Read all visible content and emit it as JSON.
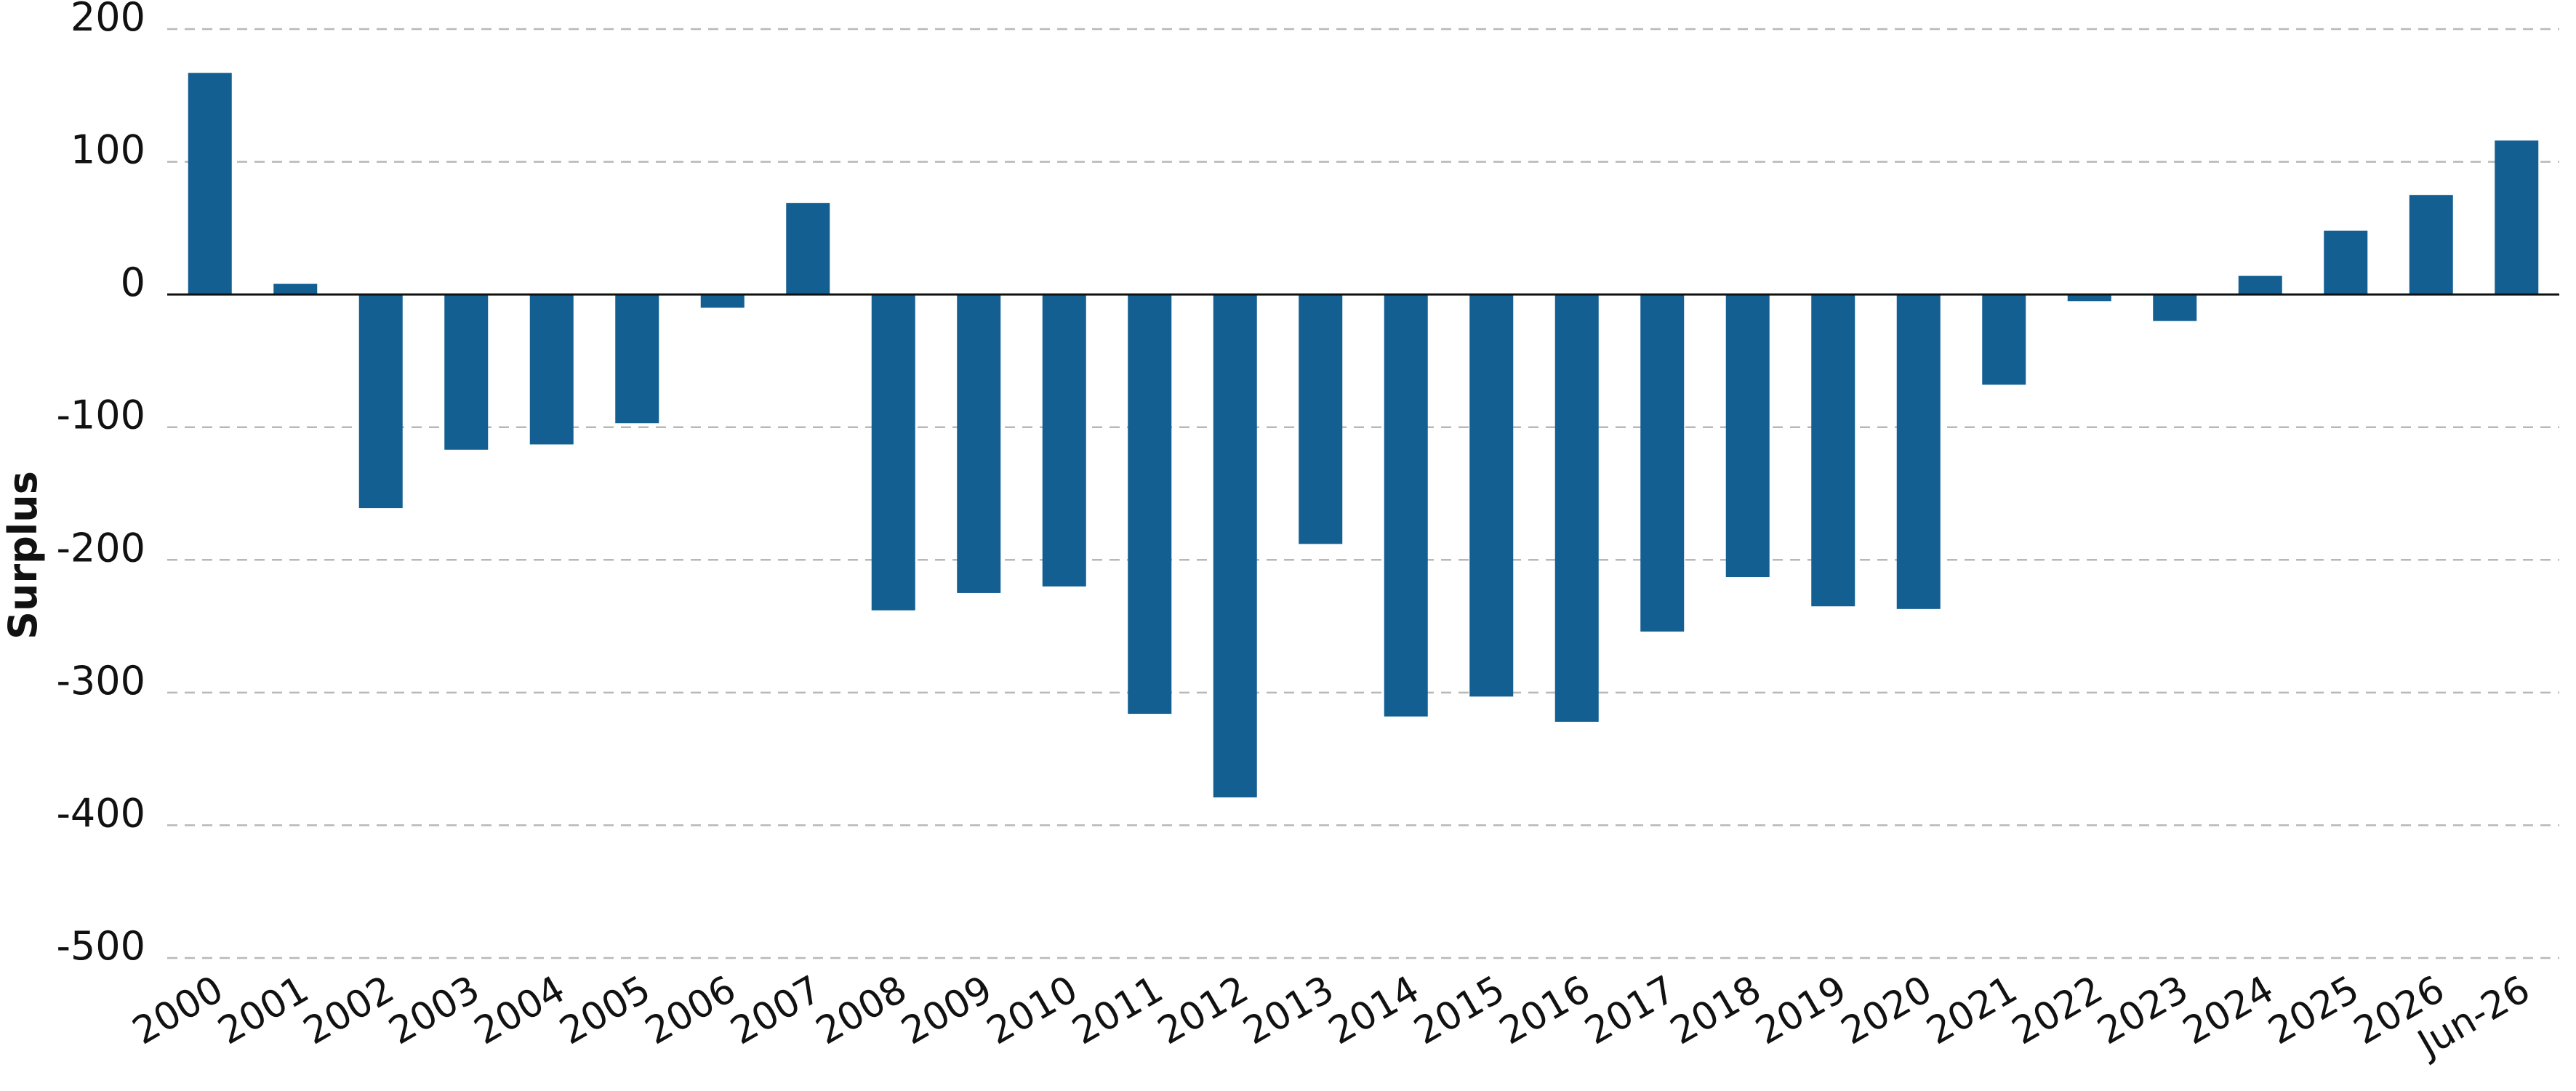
{
  "chart_data": {
    "type": "bar",
    "title": "",
    "xlabel": "",
    "ylabel": "Surplus",
    "ylim": [
      -500,
      200
    ],
    "yticks": [
      200,
      100,
      0,
      -100,
      -200,
      -300,
      -400,
      -500
    ],
    "ytick_labels": [
      "200",
      "100",
      "0",
      "-100",
      "-200",
      "-300",
      "-400",
      "-500"
    ],
    "grid": true,
    "legend": "none",
    "bar_color": "#135f92",
    "categories": [
      "2000",
      "2001",
      "2002",
      "2003",
      "2004",
      "2005",
      "2006",
      "2007",
      "2008",
      "2009",
      "2010",
      "2011",
      "2012",
      "2013",
      "2014",
      "2015",
      "2016",
      "2017",
      "2018",
      "2019",
      "2020",
      "2021",
      "2022",
      "2023",
      "2024",
      "2025",
      "2026",
      "Jun-26"
    ],
    "values": [
      167,
      8,
      -161,
      -117,
      -113,
      -97,
      -10,
      69,
      -238,
      -225,
      -220,
      -316,
      -379,
      -188,
      -318,
      -303,
      -322,
      -254,
      -213,
      -235,
      -237,
      -68,
      -5,
      -20,
      14,
      48,
      75,
      116
    ]
  }
}
